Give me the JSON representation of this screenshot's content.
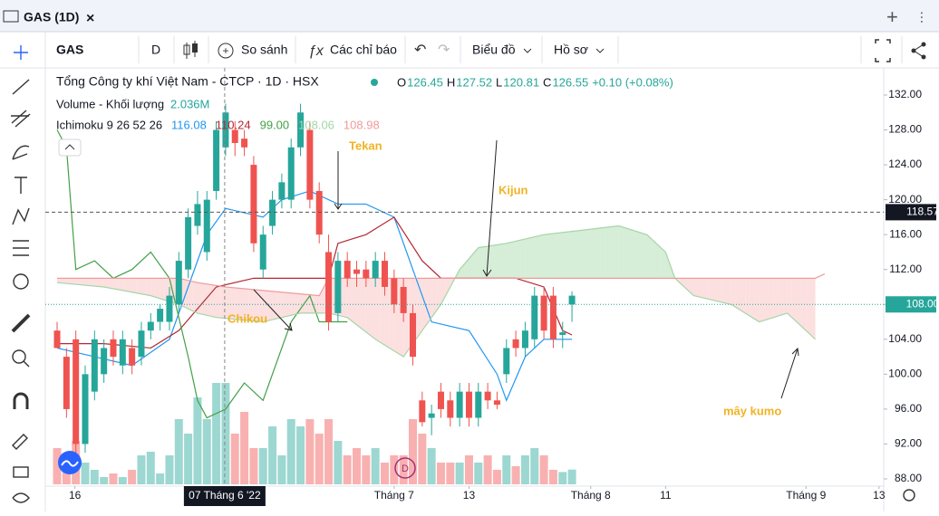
{
  "tab": {
    "title": "GAS (1D)"
  },
  "toolbar": {
    "symbol": "GAS",
    "interval": "D",
    "compare": "So sánh",
    "indicators": "Các chỉ báo",
    "chart": "Biểu đồ",
    "profile": "Hồ sơ"
  },
  "legend": {
    "name": "Tổng Công ty khí Việt Nam - CTCP · 1D · HSX",
    "ohlc": [
      {
        "key": "O",
        "value": 126.45
      },
      {
        "key": "H",
        "value": 127.52
      },
      {
        "key": "L",
        "value": 120.81
      },
      {
        "key": "C",
        "value": 126.55
      }
    ],
    "change": "+0.10 (+0.08%)",
    "volume_name": "Volume - Khối lượng",
    "volume_value": "2.036M",
    "ichimoku_name": "Ichimoku 9 26 52 26",
    "ichimoku_values": [
      "116.08",
      "110.24",
      "99.00",
      "108.06",
      "108.98"
    ]
  },
  "chart_data": {
    "type": "candlestick",
    "xlim": [
      -1.26,
      88.3
    ],
    "ylim": [
      87.17,
      135.11
    ],
    "yticks": [
      {
        "value": 88,
        "label": "88.00"
      },
      {
        "value": 92,
        "label": "92.00"
      },
      {
        "value": 96,
        "label": "96.00"
      },
      {
        "value": 100,
        "label": "100.00"
      },
      {
        "value": 104,
        "label": "104.00"
      },
      {
        "value": 108,
        "label": "108.00"
      },
      {
        "value": 112,
        "label": "112.00"
      },
      {
        "value": 116,
        "label": "116.00"
      },
      {
        "value": 120,
        "label": "120.00"
      },
      {
        "value": 124,
        "label": "124.00"
      },
      {
        "value": 128,
        "label": "128.00"
      },
      {
        "value": 132,
        "label": "132.00"
      }
    ],
    "xticks": [
      {
        "value": 1.9,
        "label": "16"
      },
      {
        "value": 36,
        "label": "Tháng 7"
      },
      {
        "value": 44,
        "label": "13"
      },
      {
        "value": 57,
        "label": "Tháng 8"
      },
      {
        "value": 65,
        "label": "11"
      },
      {
        "value": 80,
        "label": "Tháng 9"
      },
      {
        "value": 87.8,
        "label": "13"
      }
    ],
    "up_color": "#26a69a",
    "down_color": "#ef5350",
    "open": [
      105,
      102,
      104,
      92,
      98,
      100,
      104,
      101,
      103,
      102,
      105,
      106,
      106,
      108,
      112,
      117,
      114,
      121,
      126,
      128,
      127,
      124,
      112,
      117,
      120,
      120,
      126,
      128,
      121,
      114,
      107,
      113,
      112,
      112,
      111,
      113,
      111,
      110,
      107,
      97,
      95,
      98,
      97,
      95,
      98,
      95,
      98,
      97,
      100,
      104,
      103,
      104,
      109,
      109,
      104.5,
      108
    ],
    "high": [
      106,
      103,
      105,
      101,
      105,
      104,
      105,
      105,
      104,
      106,
      107,
      108,
      110,
      114,
      119,
      121,
      121,
      129,
      131,
      129,
      128,
      125,
      117,
      121,
      123,
      127,
      131,
      129,
      122,
      116,
      114,
      114,
      113,
      113,
      114,
      114,
      112,
      111,
      108,
      98,
      96.5,
      99,
      98,
      99,
      99,
      99,
      99,
      98,
      104,
      105,
      106,
      110,
      110,
      110,
      106,
      109.5
    ],
    "low": [
      103,
      95,
      91,
      91,
      97,
      99,
      101,
      100,
      100,
      101,
      104,
      105,
      105,
      107,
      111,
      116,
      113,
      120,
      125,
      125,
      125,
      114,
      111,
      116,
      119,
      119,
      125,
      119,
      115,
      105,
      106,
      110,
      110,
      110,
      110,
      109,
      107,
      106,
      101,
      94,
      93,
      95,
      94,
      94,
      94,
      94,
      96,
      96,
      99,
      102,
      102,
      103,
      104,
      103,
      103,
      106
    ],
    "close": [
      103,
      96,
      92,
      100,
      104,
      103,
      102,
      104,
      101,
      105,
      106,
      107.5,
      109,
      113,
      118,
      119.5,
      120,
      128,
      130,
      126.5,
      126,
      115,
      116,
      120,
      122,
      126,
      130,
      120,
      116,
      106,
      113,
      111,
      111.5,
      111,
      113,
      110,
      108,
      107,
      102,
      94.5,
      95.5,
      96,
      95,
      98,
      95,
      98,
      97,
      96.5,
      103,
      103,
      105,
      109,
      105,
      104,
      104.8,
      109
    ],
    "volume": [
      5,
      4,
      6,
      3,
      2,
      1,
      1.5,
      1,
      2,
      4,
      4.5,
      1.5,
      4,
      9,
      7,
      12,
      9,
      14,
      14,
      7,
      10,
      5,
      5,
      8,
      4,
      9,
      8,
      9,
      7,
      9,
      6,
      4,
      5,
      4,
      5,
      3,
      4,
      4,
      9,
      7,
      5,
      3,
      3,
      3,
      4,
      3,
      4,
      2,
      4,
      2.5,
      4,
      5,
      4,
      2,
      1.7,
      2.036
    ],
    "vlim": [
      0,
      20
    ],
    "series": [
      {
        "name": "Tenkan",
        "color": "#2196f3",
        "x": [
          0,
          4,
          8,
          12,
          14,
          16,
          18,
          22,
          24,
          27,
          30,
          33,
          36,
          38,
          40,
          44,
          47,
          48,
          50,
          52,
          55
        ],
        "values": [
          103,
          102,
          101,
          104,
          110,
          116,
          119,
          118,
          120,
          121,
          119.5,
          119.5,
          118,
          112,
          106,
          105,
          100,
          97,
          102,
          104,
          104
        ]
      },
      {
        "name": "Kijun",
        "color": "#b22833",
        "x": [
          0,
          5,
          10,
          13,
          17,
          21,
          26,
          29,
          30,
          33,
          36,
          39,
          41,
          49,
          52,
          54,
          55
        ],
        "values": [
          103.5,
          103.5,
          103,
          105,
          110,
          111,
          111,
          111,
          115,
          116,
          118,
          113,
          111,
          111,
          110,
          105,
          104.5
        ]
      },
      {
        "name": "Chikou",
        "color": "#43a047",
        "x": [
          0,
          1,
          2,
          4,
          6,
          8,
          10,
          12,
          14,
          15,
          16,
          18,
          20,
          22,
          25,
          27,
          28,
          31,
          29
        ],
        "values": [
          128,
          126,
          112,
          113,
          111,
          112,
          114,
          111,
          102,
          97,
          95,
          96,
          99,
          97,
          106,
          109,
          106,
          106,
          106
        ]
      },
      {
        "name": "Span A",
        "color": "#a5d6a7",
        "x": [
          0,
          5,
          10,
          13,
          15,
          17,
          22,
          26,
          29,
          31,
          34,
          37,
          39,
          41,
          43,
          45,
          48,
          52,
          56,
          60,
          63,
          65,
          66,
          68,
          72,
          75,
          78,
          80,
          81
        ],
        "values": [
          110.5,
          110,
          109,
          108,
          107,
          106.5,
          106,
          107,
          107,
          106.5,
          104,
          102,
          105,
          108,
          112,
          114.5,
          115,
          116,
          116.5,
          117,
          116,
          114,
          111,
          109,
          108,
          106,
          107,
          105,
          104
        ]
      },
      {
        "name": "Span B",
        "color": "#ef9a9a",
        "x": [
          0,
          13,
          15,
          18,
          28,
          29,
          44,
          49,
          81,
          82
        ],
        "values": [
          111,
          111,
          110.5,
          110,
          109,
          111,
          111,
          111,
          111,
          111.5
        ]
      }
    ],
    "price_lines": [
      {
        "value": 118.57,
        "color": "#555"
      },
      {
        "value": 108,
        "label": "108.00",
        "color": "#26a69a"
      }
    ],
    "crosshair": {
      "x": 17.9,
      "label": "07 Tháng 6 '22"
    },
    "annotations": [
      "Tekan",
      "Kijun",
      "Chikou",
      "mây kumo"
    ]
  }
}
